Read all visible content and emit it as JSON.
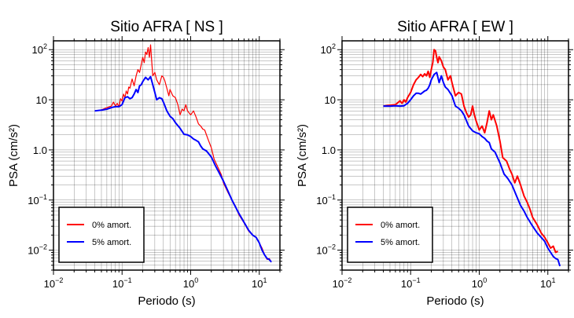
{
  "chart_data": [
    {
      "type": "line",
      "title": "Sitio AFRA [ NS ]",
      "xlabel": "Periodo (s)",
      "ylabel": "PSA (cm/s²)",
      "xscale": "log",
      "yscale": "log",
      "xlim": [
        0.01,
        20
      ],
      "ylim": [
        0.004,
        150
      ],
      "xticks": [
        {
          "value": 0.01,
          "base": "10",
          "exp": "−2"
        },
        {
          "value": 0.1,
          "base": "10",
          "exp": "−1"
        },
        {
          "value": 1,
          "base": "10",
          "exp": "0"
        },
        {
          "value": 10,
          "base": "10",
          "exp": "1"
        }
      ],
      "yticks": [
        {
          "value": 0.01,
          "base": "10",
          "exp": "−2"
        },
        {
          "value": 0.1,
          "base": "10",
          "exp": "−1"
        },
        {
          "value": 1,
          "base": "1.0",
          "exp": ""
        },
        {
          "value": 10,
          "base": "10",
          "exp": ""
        },
        {
          "value": 100,
          "base": "10",
          "exp": "2"
        }
      ],
      "grid": true,
      "legend_position": "bottom-left",
      "series": [
        {
          "name": "0% amort.",
          "color": "#ff0000",
          "x": [
            0.04,
            0.05,
            0.06,
            0.07,
            0.075,
            0.08,
            0.085,
            0.09,
            0.095,
            0.1,
            0.105,
            0.11,
            0.115,
            0.12,
            0.125,
            0.13,
            0.14,
            0.15,
            0.16,
            0.17,
            0.18,
            0.19,
            0.2,
            0.21,
            0.22,
            0.23,
            0.24,
            0.25,
            0.26,
            0.27,
            0.28,
            0.3,
            0.32,
            0.35,
            0.38,
            0.4,
            0.42,
            0.45,
            0.48,
            0.5,
            0.55,
            0.6,
            0.65,
            0.7,
            0.75,
            0.8,
            0.85,
            0.9,
            1.0,
            1.1,
            1.2,
            1.3,
            1.4,
            1.5,
            1.6,
            1.8,
            2.0,
            2.2,
            2.5,
            2.8,
            3.0,
            3.5,
            4.0,
            4.5,
            5.0,
            6.0,
            7.0,
            8.0,
            9.0,
            10.0,
            11.0,
            12.0,
            13.0,
            14.0,
            15.0
          ],
          "y": [
            6.0,
            6.3,
            7.0,
            7.5,
            9.0,
            7.5,
            8.5,
            7.2,
            10.5,
            9.5,
            13.0,
            11.0,
            15.0,
            13.0,
            18.0,
            17.0,
            26.0,
            19.0,
            30.0,
            40.0,
            35.0,
            50.0,
            70.0,
            55.0,
            90.0,
            80.0,
            110.0,
            70.0,
            125.0,
            60.0,
            30.0,
            35.0,
            25.0,
            20.0,
            30.0,
            28.0,
            24.0,
            17.0,
            12.0,
            16.0,
            12.0,
            11.0,
            8.0,
            5.0,
            6.5,
            6.0,
            8.0,
            6.0,
            5.0,
            6.0,
            4.5,
            3.3,
            3.0,
            2.6,
            2.5,
            1.6,
            1.1,
            0.65,
            0.45,
            0.32,
            0.22,
            0.14,
            0.1,
            0.075,
            0.052,
            0.035,
            0.024,
            0.02,
            0.018,
            0.014,
            0.011,
            0.008,
            0.0065,
            0.0068,
            0.0058
          ]
        },
        {
          "name": "5% amort.",
          "color": "#0000ff",
          "x": [
            0.04,
            0.05,
            0.06,
            0.07,
            0.08,
            0.09,
            0.1,
            0.11,
            0.12,
            0.13,
            0.14,
            0.15,
            0.16,
            0.17,
            0.18,
            0.19,
            0.2,
            0.22,
            0.24,
            0.26,
            0.28,
            0.3,
            0.32,
            0.35,
            0.38,
            0.4,
            0.45,
            0.5,
            0.55,
            0.6,
            0.7,
            0.8,
            0.9,
            1.0,
            1.1,
            1.2,
            1.3,
            1.4,
            1.5,
            1.7,
            2.0,
            2.3,
            2.6,
            3.0,
            3.5,
            4.0,
            4.5,
            5.0,
            6.0,
            7.0,
            8.0,
            9.0,
            10.0,
            11.0,
            12.0,
            13.0,
            14.0,
            15.0
          ],
          "y": [
            6.0,
            6.2,
            6.5,
            7.0,
            7.3,
            7.3,
            8.0,
            11.0,
            11.5,
            10.5,
            11.0,
            13.0,
            16.0,
            14.0,
            19.0,
            20.0,
            23.0,
            28.0,
            25.0,
            29.0,
            20.0,
            14.0,
            10.0,
            11.0,
            10.5,
            9.0,
            6.0,
            4.7,
            4.2,
            3.5,
            2.7,
            2.05,
            2.0,
            1.85,
            1.65,
            1.55,
            1.45,
            1.2,
            1.05,
            0.95,
            0.72,
            0.48,
            0.35,
            0.24,
            0.15,
            0.1,
            0.073,
            0.055,
            0.036,
            0.025,
            0.02,
            0.018,
            0.014,
            0.01,
            0.008,
            0.0068,
            0.0065,
            0.0058
          ]
        }
      ]
    },
    {
      "type": "line",
      "title": "Sitio AFRA [ EW ]",
      "xlabel": "Periodo (s)",
      "ylabel": "PSA (cm/s²)",
      "xscale": "log",
      "yscale": "log",
      "xlim": [
        0.01,
        20
      ],
      "ylim": [
        0.004,
        150
      ],
      "xticks": [
        {
          "value": 0.01,
          "base": "10",
          "exp": "−2"
        },
        {
          "value": 0.1,
          "base": "10",
          "exp": "−1"
        },
        {
          "value": 1,
          "base": "10",
          "exp": "0"
        },
        {
          "value": 10,
          "base": "10",
          "exp": "1"
        }
      ],
      "yticks": [
        {
          "value": 0.01,
          "base": "10",
          "exp": "−2"
        },
        {
          "value": 0.1,
          "base": "10",
          "exp": "−1"
        },
        {
          "value": 1,
          "base": "1.0",
          "exp": ""
        },
        {
          "value": 10,
          "base": "10",
          "exp": ""
        },
        {
          "value": 100,
          "base": "10",
          "exp": "2"
        }
      ],
      "grid": true,
      "legend_position": "bottom-left",
      "series": [
        {
          "name": "0% amort.",
          "color": "#ff0000",
          "x": [
            0.04,
            0.05,
            0.06,
            0.07,
            0.075,
            0.08,
            0.085,
            0.09,
            0.1,
            0.11,
            0.12,
            0.13,
            0.14,
            0.15,
            0.16,
            0.17,
            0.18,
            0.19,
            0.2,
            0.21,
            0.22,
            0.23,
            0.24,
            0.25,
            0.26,
            0.28,
            0.3,
            0.32,
            0.35,
            0.38,
            0.4,
            0.45,
            0.5,
            0.55,
            0.6,
            0.65,
            0.7,
            0.75,
            0.8,
            0.85,
            0.9,
            1.0,
            1.1,
            1.2,
            1.3,
            1.4,
            1.5,
            1.6,
            1.8,
            2.0,
            2.2,
            2.5,
            2.8,
            3.0,
            3.3,
            3.6,
            4.0,
            4.5,
            5.0,
            5.5,
            6.0,
            7.0,
            8.0,
            9.0,
            10.0,
            11.0,
            12.0,
            13.0,
            14.0
          ],
          "y": [
            7.5,
            7.8,
            8.0,
            9.5,
            8.5,
            10.0,
            9.0,
            11.0,
            14.0,
            20.0,
            25.0,
            28.0,
            32.0,
            29.0,
            33.0,
            30.0,
            37.0,
            28.0,
            40.0,
            55.0,
            100.0,
            95.0,
            70.0,
            55.0,
            72.0,
            60.0,
            45.0,
            40.0,
            25.0,
            30.0,
            22.0,
            12.0,
            14.0,
            13.0,
            7.5,
            5.5,
            4.5,
            5.0,
            7.5,
            5.0,
            3.8,
            2.5,
            3.0,
            2.2,
            3.5,
            6.0,
            4.0,
            5.0,
            3.0,
            1.5,
            0.7,
            0.6,
            0.4,
            0.33,
            0.22,
            0.3,
            0.2,
            0.12,
            0.09,
            0.065,
            0.045,
            0.032,
            0.022,
            0.018,
            0.014,
            0.011,
            0.012,
            0.009,
            0.0095
          ]
        },
        {
          "name": "5% amort.",
          "color": "#0000ff",
          "x": [
            0.04,
            0.05,
            0.06,
            0.07,
            0.08,
            0.09,
            0.1,
            0.11,
            0.12,
            0.13,
            0.14,
            0.15,
            0.16,
            0.17,
            0.18,
            0.19,
            0.2,
            0.22,
            0.24,
            0.26,
            0.28,
            0.3,
            0.32,
            0.35,
            0.38,
            0.4,
            0.45,
            0.5,
            0.55,
            0.6,
            0.7,
            0.8,
            0.9,
            1.0,
            1.1,
            1.2,
            1.3,
            1.4,
            1.5,
            1.7,
            2.0,
            2.3,
            2.6,
            3.0,
            3.5,
            4.0,
            4.5,
            5.0,
            6.0,
            7.0,
            8.0,
            9.0,
            10.0,
            11.0,
            12.0,
            13.0,
            14.0,
            15.0
          ],
          "y": [
            7.5,
            7.5,
            7.6,
            7.5,
            7.6,
            8.5,
            10.0,
            12.0,
            13.5,
            13.5,
            13.0,
            14.0,
            15.0,
            15.5,
            17.0,
            20.0,
            25.0,
            32.0,
            35.0,
            22.0,
            30.0,
            22.0,
            18.0,
            16.0,
            13.5,
            12.0,
            7.5,
            6.8,
            6.0,
            5.0,
            3.0,
            2.4,
            2.2,
            2.1,
            1.85,
            1.7,
            1.5,
            1.4,
            1.05,
            0.9,
            0.55,
            0.33,
            0.27,
            0.2,
            0.12,
            0.078,
            0.06,
            0.045,
            0.03,
            0.022,
            0.018,
            0.015,
            0.011,
            0.009,
            0.0075,
            0.0068,
            0.0065,
            0.0048
          ]
        }
      ]
    }
  ]
}
